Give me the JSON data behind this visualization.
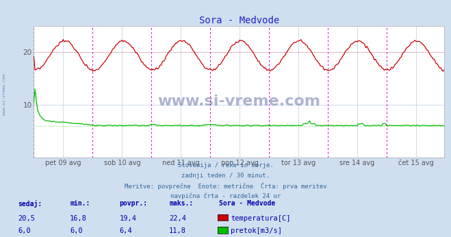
{
  "title": "Sora - Medvode",
  "title_color": "#2222cc",
  "bg_color": "#d0dff0",
  "plot_bg_color": "#ffffff",
  "grid_color": "#bbccdd",
  "x_labels": [
    "pet 09 avg",
    "sob 10 avg",
    "ned 11 avg",
    "pon 12 avg",
    "tor 13 avg",
    "sre 14 avg",
    "čet 15 avg"
  ],
  "y_ticks": [
    10,
    20
  ],
  "ylim": [
    0,
    25
  ],
  "n_points": 336,
  "temp_avg": 20.0,
  "flow_avg": 6.0,
  "temp_color": "#cc0000",
  "flow_color": "#00bb00",
  "hline_temp_color": "#ff8888",
  "hline_flow_color": "#88dd88",
  "vline_color_magenta": "#dd00dd",
  "vline_color_black": "#888888",
  "watermark_text": "www.si-vreme.com",
  "watermark_color": "#334488",
  "watermark_alpha": 0.4,
  "footer_lines": [
    "Slovenija / reke in morje.",
    "zadnji teden / 30 minut.",
    "Meritve: povprečne  Enote: metrične  Črta: prva meritev",
    "navpična črta - razdelek 24 ur"
  ],
  "legend_title": "Sora - Medvode",
  "legend_items": [
    {
      "label": "temperatura[C]",
      "color": "#cc0000"
    },
    {
      "label": "pretok[m3/s]",
      "color": "#00bb00"
    }
  ],
  "legend_stats": [
    {
      "sedaj": "20,5",
      "min": "16,8",
      "povpr": "19,4",
      "maks": "22,4"
    },
    {
      "sedaj": "6,0",
      "min": "6,0",
      "povpr": "6,4",
      "maks": "11,8"
    }
  ],
  "stat_headers": [
    "sedaj:",
    "min.:",
    "povpr.:",
    "maks.:"
  ],
  "stat_color": "#0000aa",
  "text_color": "#336699"
}
